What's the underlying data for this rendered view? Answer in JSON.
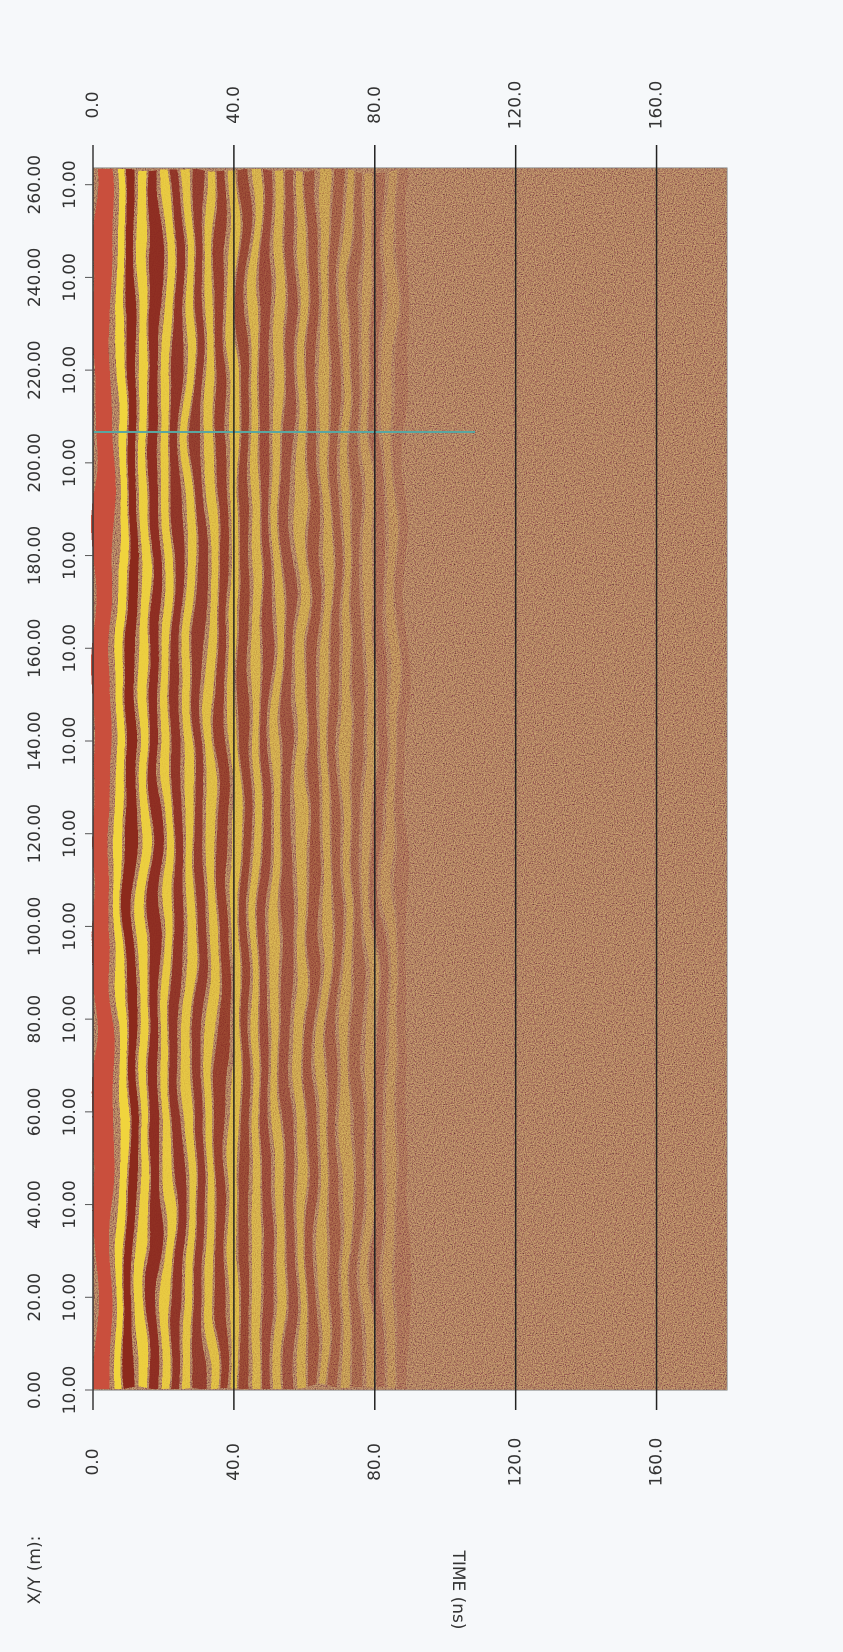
{
  "chart_data": {
    "type": "radargram",
    "x_label": "TIME (ns)",
    "y_label": "X/Y (m):",
    "xlim": [
      0,
      180
    ],
    "xticks": [
      {
        "value": 0,
        "label": "0.0"
      },
      {
        "value": 40,
        "label": "40.0"
      },
      {
        "value": 80,
        "label": "80.0"
      },
      {
        "value": 120,
        "label": "120.0"
      },
      {
        "value": 160,
        "label": "160.0"
      }
    ],
    "ylim": [
      0,
      263.6
    ],
    "yticks": [
      {
        "value": 0,
        "label": "0.00"
      },
      {
        "value": 20,
        "label": "20.00"
      },
      {
        "value": 40,
        "label": "40.00"
      },
      {
        "value": 60,
        "label": "60.00"
      },
      {
        "value": 80,
        "label": "80.00"
      },
      {
        "value": 100,
        "label": "100.00"
      },
      {
        "value": 120,
        "label": "120.00"
      },
      {
        "value": 140,
        "label": "140.00"
      },
      {
        "value": 160,
        "label": "160.00"
      },
      {
        "value": 180,
        "label": "180.00"
      },
      {
        "value": 200,
        "label": "200.00"
      },
      {
        "value": 220,
        "label": "220.00"
      },
      {
        "value": 240,
        "label": "240.00"
      },
      {
        "value": 260,
        "label": "260.00"
      }
    ],
    "ytick_second_labels": [
      "10.00",
      "10.00",
      "10.00",
      "10.00",
      "10.00",
      "10.00",
      "10.00",
      "10.00",
      "10.00",
      "10.00",
      "10.00",
      "10.00",
      "10.00",
      "10.00"
    ],
    "grid": true
  }
}
